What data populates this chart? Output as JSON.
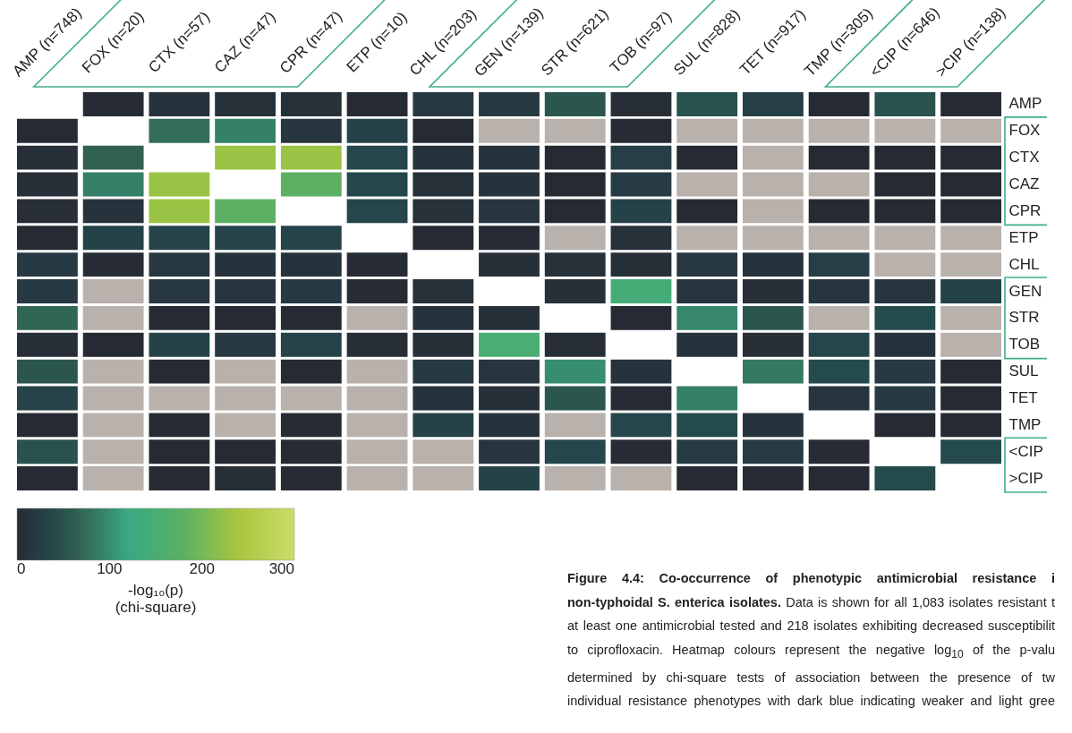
{
  "chart_data": {
    "type": "heatmap",
    "categories": [
      "AMP (n=748)",
      "FOX (n=20)",
      "CTX (n=57)",
      "CAZ (n=47)",
      "CPR (n=47)",
      "ETP (n=10)",
      "CHL (n=203)",
      "GEN (n=139)",
      "STR (n=621)",
      "TOB (n=97)",
      "SUL (n=828)",
      "TET (n=917)",
      "TMP (n=305)",
      "<CIP (n=646)",
      ">CIP (n=138)"
    ],
    "y_categories": [
      "AMP",
      "FOX",
      "CTX",
      "CAZ",
      "CPR",
      "ETP",
      "CHL",
      "GEN",
      "STR",
      "TOB",
      "SUL",
      "TET",
      "TMP",
      "<CIP",
      ">CIP"
    ],
    "cells": [
      [
        null,
        2,
        12,
        10,
        10,
        2,
        20,
        20,
        55,
        5,
        50,
        25,
        2,
        50,
        2
      ],
      [
        2,
        null,
        75,
        90,
        15,
        30,
        2,
        null,
        null,
        3,
        null,
        null,
        null,
        null,
        null
      ],
      [
        8,
        65,
        null,
        230,
        230,
        35,
        12,
        12,
        2,
        25,
        2,
        null,
        2,
        2,
        2
      ],
      [
        8,
        90,
        230,
        null,
        180,
        35,
        10,
        12,
        2,
        22,
        null,
        null,
        null,
        2,
        2
      ],
      [
        5,
        12,
        230,
        180,
        null,
        35,
        10,
        15,
        2,
        30,
        2,
        null,
        2,
        2,
        2
      ],
      [
        2,
        30,
        32,
        32,
        32,
        null,
        2,
        2,
        null,
        10,
        null,
        null,
        null,
        null,
        null
      ],
      [
        20,
        3,
        18,
        12,
        12,
        3,
        null,
        8,
        10,
        8,
        18,
        12,
        25,
        null,
        null
      ],
      [
        20,
        null,
        18,
        15,
        20,
        3,
        10,
        null,
        8,
        145,
        15,
        8,
        15,
        15,
        30
      ],
      [
        70,
        null,
        2,
        2,
        2,
        null,
        12,
        8,
        null,
        2,
        95,
        55,
        null,
        40,
        null
      ],
      [
        8,
        2,
        30,
        18,
        32,
        5,
        8,
        150,
        4,
        null,
        12,
        5,
        35,
        12,
        null
      ],
      [
        55,
        null,
        2,
        null,
        2,
        null,
        20,
        15,
        100,
        12,
        null,
        85,
        40,
        20,
        2
      ],
      [
        32,
        null,
        null,
        null,
        null,
        null,
        12,
        8,
        55,
        3,
        90,
        null,
        15,
        20,
        2
      ],
      [
        2,
        null,
        3,
        null,
        3,
        null,
        30,
        12,
        null,
        35,
        40,
        12,
        null,
        2,
        2
      ],
      [
        50,
        null,
        2,
        2,
        3,
        null,
        null,
        15,
        35,
        3,
        22,
        22,
        3,
        null,
        40
      ],
      [
        2,
        null,
        3,
        5,
        3,
        null,
        null,
        30,
        null,
        null,
        2,
        3,
        2,
        40,
        null
      ]
    ],
    "clim": [
      0,
      300
    ],
    "cticks": [
      0,
      100,
      200,
      300
    ],
    "clabel": "-log₁₀(p)\n(chi-square)",
    "annotations": [
      "Figure 4.4: Co-occurrence of phenotypic antimicrobial resistance i",
      "non-typhoidal S. enterica isolates.",
      "Data is shown for all 1,083 isolates resistant t",
      "at least one antimicrobial tested and 218 isolates exhibiting decreased susceptibilit",
      "to ciprofloxacin. Heatmap colours represent the negative log$_{10}$ of the p-valu",
      "determined by chi-square tests of association between the presence of tw",
      "individual resistance phenotypes with dark blue indicating weaker and light gree"
    ]
  }
}
